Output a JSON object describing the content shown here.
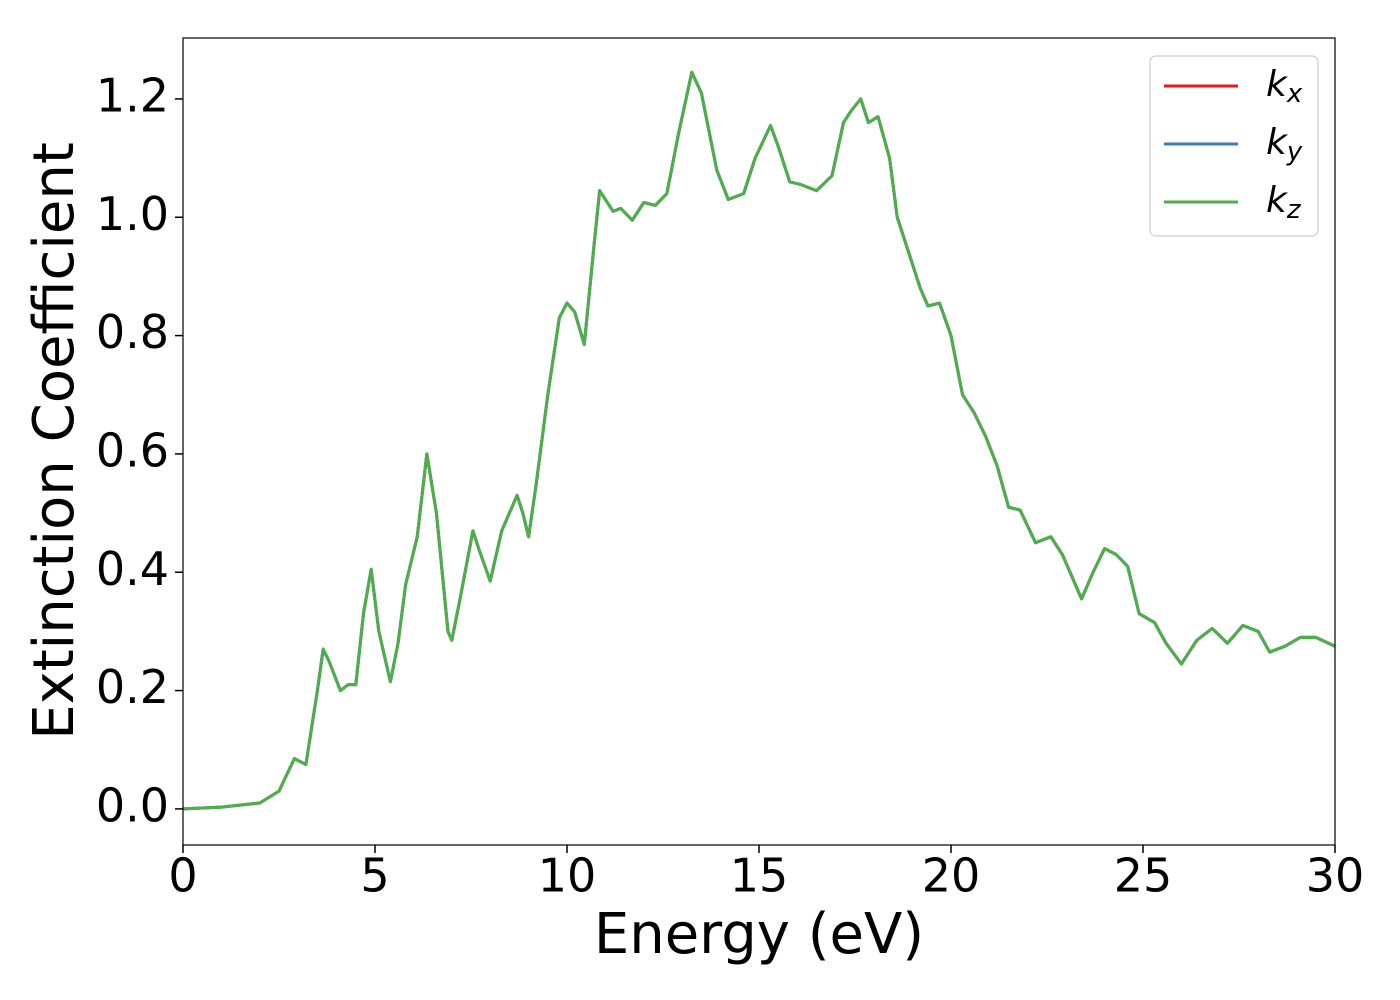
{
  "chart_data": {
    "type": "line",
    "xlabel": "Energy (eV)",
    "ylabel": "Extinction Coefficient",
    "x": [
      0,
      1,
      2,
      2.5,
      2.9,
      3.2,
      3.5,
      3.65,
      3.8,
      4.1,
      4.3,
      4.5,
      4.7,
      4.9,
      5.1,
      5.4,
      5.6,
      5.8,
      6.1,
      6.35,
      6.6,
      6.9,
      7.0,
      7.2,
      7.55,
      7.7,
      8.0,
      8.3,
      8.5,
      8.7,
      8.85,
      9.0,
      9.2,
      9.5,
      9.8,
      10.0,
      10.2,
      10.45,
      10.7,
      10.85,
      11.0,
      11.2,
      11.4,
      11.7,
      12.0,
      12.3,
      12.6,
      12.9,
      13.25,
      13.5,
      13.9,
      14.2,
      14.6,
      14.9,
      15.3,
      15.5,
      15.8,
      16.1,
      16.5,
      16.9,
      17.2,
      17.4,
      17.65,
      17.85,
      18.1,
      18.4,
      18.6,
      19.0,
      19.2,
      19.4,
      19.7,
      20.0,
      20.3,
      20.6,
      20.9,
      21.2,
      21.5,
      21.8,
      22.2,
      22.6,
      22.9,
      23.4,
      23.7,
      24.0,
      24.3,
      24.6,
      24.9,
      25.3,
      25.6,
      26.0,
      26.4,
      26.8,
      27.2,
      27.6,
      28.0,
      28.3,
      28.7,
      29.1,
      29.5,
      30
    ],
    "series": [
      {
        "name": "kx",
        "sub": "x",
        "color": "#e41a1c",
        "values": [
          0,
          0.003,
          0.01,
          0.03,
          0.085,
          0.075,
          0.2,
          0.27,
          0.25,
          0.2,
          0.21,
          0.21,
          0.33,
          0.405,
          0.3,
          0.215,
          0.28,
          0.38,
          0.46,
          0.6,
          0.5,
          0.3,
          0.285,
          0.35,
          0.47,
          0.44,
          0.385,
          0.47,
          0.5,
          0.53,
          0.5,
          0.46,
          0.55,
          0.7,
          0.83,
          0.855,
          0.84,
          0.785,
          0.95,
          1.045,
          1.03,
          1.01,
          1.015,
          0.995,
          1.025,
          1.02,
          1.04,
          1.14,
          1.245,
          1.21,
          1.08,
          1.03,
          1.04,
          1.1,
          1.155,
          1.12,
          1.06,
          1.055,
          1.045,
          1.07,
          1.16,
          1.18,
          1.2,
          1.16,
          1.17,
          1.1,
          1.0,
          0.92,
          0.88,
          0.85,
          0.855,
          0.8,
          0.7,
          0.67,
          0.63,
          0.58,
          0.51,
          0.505,
          0.45,
          0.46,
          0.43,
          0.355,
          0.4,
          0.44,
          0.43,
          0.41,
          0.33,
          0.315,
          0.28,
          0.245,
          0.285,
          0.305,
          0.28,
          0.31,
          0.3,
          0.265,
          0.275,
          0.29,
          0.29,
          0.275
        ]
      },
      {
        "name": "ky",
        "sub": "y",
        "color": "#377eb8",
        "values": [
          0,
          0.003,
          0.01,
          0.03,
          0.085,
          0.075,
          0.2,
          0.27,
          0.25,
          0.2,
          0.21,
          0.21,
          0.33,
          0.405,
          0.3,
          0.215,
          0.28,
          0.38,
          0.46,
          0.6,
          0.5,
          0.3,
          0.285,
          0.35,
          0.47,
          0.44,
          0.385,
          0.47,
          0.5,
          0.53,
          0.5,
          0.46,
          0.55,
          0.7,
          0.83,
          0.855,
          0.84,
          0.785,
          0.95,
          1.045,
          1.03,
          1.01,
          1.015,
          0.995,
          1.025,
          1.02,
          1.04,
          1.14,
          1.245,
          1.21,
          1.08,
          1.03,
          1.04,
          1.1,
          1.155,
          1.12,
          1.06,
          1.055,
          1.045,
          1.07,
          1.16,
          1.18,
          1.2,
          1.16,
          1.17,
          1.1,
          1.0,
          0.92,
          0.88,
          0.85,
          0.855,
          0.8,
          0.7,
          0.67,
          0.63,
          0.58,
          0.51,
          0.505,
          0.45,
          0.46,
          0.43,
          0.355,
          0.4,
          0.44,
          0.43,
          0.41,
          0.33,
          0.315,
          0.28,
          0.245,
          0.285,
          0.305,
          0.28,
          0.31,
          0.3,
          0.265,
          0.275,
          0.29,
          0.29,
          0.275
        ]
      },
      {
        "name": "kz",
        "sub": "z",
        "color": "#4daf4a",
        "values": [
          0,
          0.003,
          0.01,
          0.03,
          0.085,
          0.075,
          0.2,
          0.27,
          0.25,
          0.2,
          0.21,
          0.21,
          0.33,
          0.405,
          0.3,
          0.215,
          0.28,
          0.38,
          0.46,
          0.6,
          0.5,
          0.3,
          0.285,
          0.35,
          0.47,
          0.44,
          0.385,
          0.47,
          0.5,
          0.53,
          0.5,
          0.46,
          0.55,
          0.7,
          0.83,
          0.855,
          0.84,
          0.785,
          0.95,
          1.045,
          1.03,
          1.01,
          1.015,
          0.995,
          1.025,
          1.02,
          1.04,
          1.14,
          1.245,
          1.21,
          1.08,
          1.03,
          1.04,
          1.1,
          1.155,
          1.12,
          1.06,
          1.055,
          1.045,
          1.07,
          1.16,
          1.18,
          1.2,
          1.16,
          1.17,
          1.1,
          1.0,
          0.92,
          0.88,
          0.85,
          0.855,
          0.8,
          0.7,
          0.67,
          0.63,
          0.58,
          0.51,
          0.505,
          0.45,
          0.46,
          0.43,
          0.355,
          0.4,
          0.44,
          0.43,
          0.41,
          0.33,
          0.315,
          0.28,
          0.245,
          0.285,
          0.305,
          0.28,
          0.31,
          0.3,
          0.265,
          0.275,
          0.29,
          0.29,
          0.275
        ]
      }
    ],
    "xlim": [
      0,
      30
    ],
    "xticks": [
      0,
      5,
      10,
      15,
      20,
      25,
      30
    ],
    "ylim": [
      -0.061,
      1.303
    ],
    "yticks": [
      {
        "value": 0,
        "label": "0.0"
      },
      {
        "value": 0.2,
        "label": "0.2"
      },
      {
        "value": 0.4,
        "label": "0.4"
      },
      {
        "value": 0.6,
        "label": "0.6"
      },
      {
        "value": 0.8,
        "label": "0.8"
      },
      {
        "value": 1,
        "label": "1.0"
      },
      {
        "value": 1.2,
        "label": "1.2"
      }
    ],
    "legend": "upper right"
  }
}
